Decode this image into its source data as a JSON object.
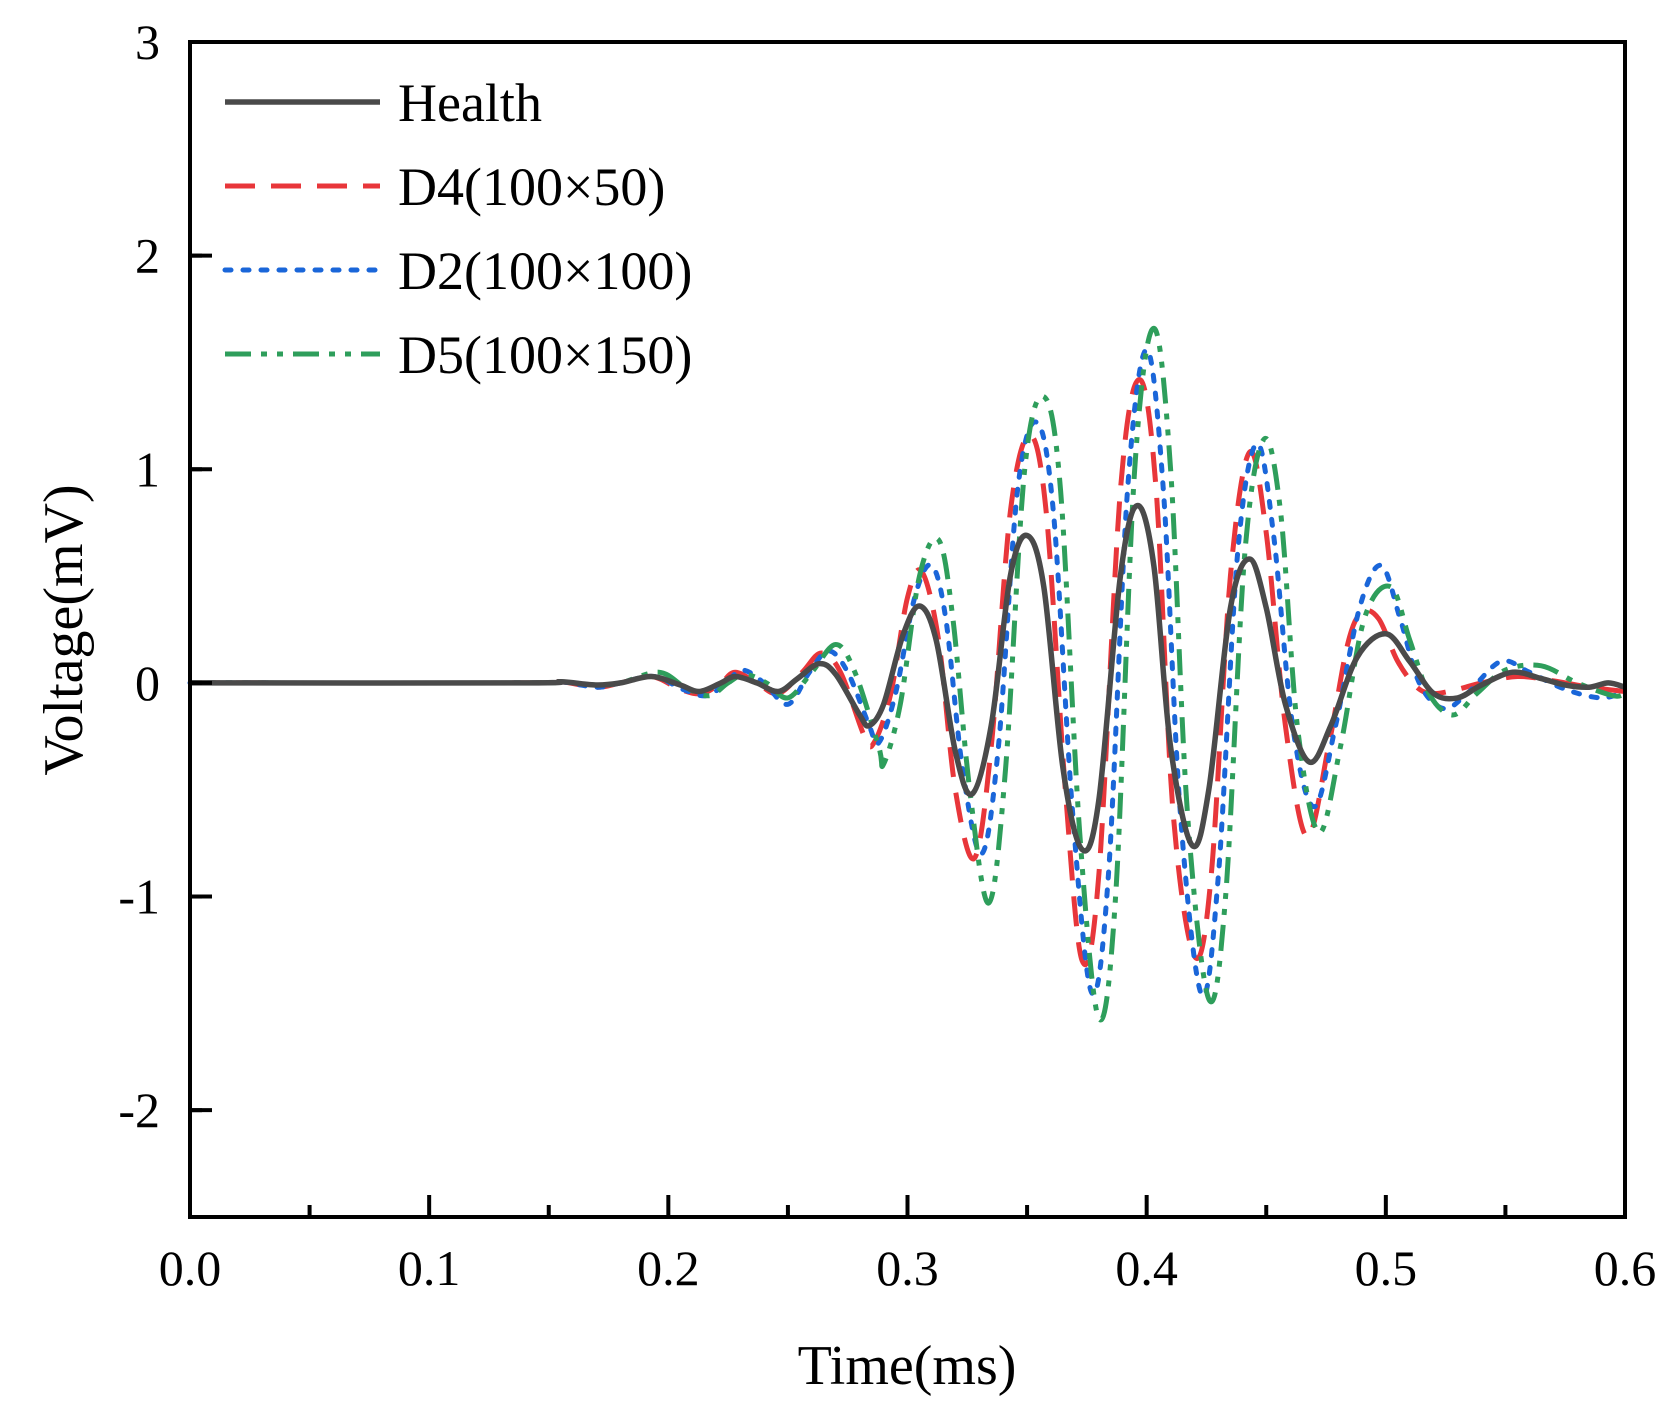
{
  "chart_data": {
    "type": "line",
    "title": "",
    "xlabel": "Time(ms)",
    "ylabel": "Voltage(mV)",
    "xlim": [
      0.0,
      0.6
    ],
    "ylim": [
      -2.5,
      3
    ],
    "x_ticks": [
      "0.0",
      "0.1",
      "0.2",
      "0.3",
      "0.4",
      "0.5",
      "0.6"
    ],
    "y_ticks": [
      "-2",
      "-1",
      "0",
      "1",
      "2",
      "3"
    ],
    "legend_position": "top-left",
    "grid": false,
    "series": [
      {
        "name": "Health",
        "color": "#4a4a4a",
        "dash": "solid",
        "points": [
          [
            0.0,
            0
          ],
          [
            0.14,
            0
          ],
          [
            0.155,
            0.005
          ],
          [
            0.17,
            -0.01
          ],
          [
            0.18,
            0
          ],
          [
            0.193,
            0.03
          ],
          [
            0.205,
            -0.01
          ],
          [
            0.213,
            -0.04
          ],
          [
            0.222,
            0
          ],
          [
            0.228,
            0.03
          ],
          [
            0.237,
            0
          ],
          [
            0.246,
            -0.04
          ],
          [
            0.254,
            0.02
          ],
          [
            0.263,
            0.09
          ],
          [
            0.27,
            0.04
          ],
          [
            0.28,
            -0.15
          ],
          [
            0.284,
            -0.2
          ],
          [
            0.29,
            -0.1
          ],
          [
            0.298,
            0.22
          ],
          [
            0.305,
            0.36
          ],
          [
            0.312,
            0.2
          ],
          [
            0.32,
            -0.32
          ],
          [
            0.327,
            -0.52
          ],
          [
            0.335,
            -0.2
          ],
          [
            0.343,
            0.5
          ],
          [
            0.35,
            0.69
          ],
          [
            0.357,
            0.45
          ],
          [
            0.365,
            -0.4
          ],
          [
            0.373,
            -0.78
          ],
          [
            0.38,
            -0.55
          ],
          [
            0.389,
            0.5
          ],
          [
            0.396,
            0.83
          ],
          [
            0.403,
            0.55
          ],
          [
            0.41,
            -0.3
          ],
          [
            0.419,
            -0.76
          ],
          [
            0.426,
            -0.5
          ],
          [
            0.435,
            0.35
          ],
          [
            0.443,
            0.58
          ],
          [
            0.45,
            0.35
          ],
          [
            0.458,
            -0.1
          ],
          [
            0.468,
            -0.37
          ],
          [
            0.477,
            -0.2
          ],
          [
            0.488,
            0.12
          ],
          [
            0.5,
            0.23
          ],
          [
            0.51,
            0.1
          ],
          [
            0.52,
            -0.05
          ],
          [
            0.53,
            -0.07
          ],
          [
            0.54,
            -0.01
          ],
          [
            0.553,
            0.05
          ],
          [
            0.565,
            0.02
          ],
          [
            0.575,
            -0.01
          ],
          [
            0.585,
            -0.02
          ],
          [
            0.593,
            0.0
          ],
          [
            0.6,
            -0.02
          ]
        ]
      },
      {
        "name": "D4(100×50)",
        "color": "#e8363a",
        "dash": "dashed",
        "points": [
          [
            0.0,
            0
          ],
          [
            0.14,
            0
          ],
          [
            0.155,
            0.005
          ],
          [
            0.17,
            -0.02
          ],
          [
            0.18,
            0
          ],
          [
            0.193,
            0.03
          ],
          [
            0.205,
            -0.03
          ],
          [
            0.214,
            -0.05
          ],
          [
            0.222,
            0
          ],
          [
            0.228,
            0.05
          ],
          [
            0.237,
            0
          ],
          [
            0.246,
            -0.05
          ],
          [
            0.256,
            0.05
          ],
          [
            0.264,
            0.14
          ],
          [
            0.272,
            0.05
          ],
          [
            0.282,
            -0.25
          ],
          [
            0.286,
            -0.28
          ],
          [
            0.293,
            -0.05
          ],
          [
            0.3,
            0.4
          ],
          [
            0.306,
            0.52
          ],
          [
            0.313,
            0.2
          ],
          [
            0.32,
            -0.5
          ],
          [
            0.328,
            -0.82
          ],
          [
            0.335,
            -0.3
          ],
          [
            0.343,
            0.8
          ],
          [
            0.351,
            1.16
          ],
          [
            0.358,
            0.8
          ],
          [
            0.366,
            -0.5
          ],
          [
            0.373,
            -1.3
          ],
          [
            0.38,
            -0.9
          ],
          [
            0.389,
            0.9
          ],
          [
            0.397,
            1.42
          ],
          [
            0.404,
            0.9
          ],
          [
            0.411,
            -0.6
          ],
          [
            0.42,
            -1.28
          ],
          [
            0.427,
            -0.9
          ],
          [
            0.435,
            0.5
          ],
          [
            0.443,
            1.08
          ],
          [
            0.45,
            0.7
          ],
          [
            0.458,
            -0.2
          ],
          [
            0.467,
            -0.72
          ],
          [
            0.476,
            -0.3
          ],
          [
            0.484,
            0.18
          ],
          [
            0.49,
            0.33
          ],
          [
            0.497,
            0.3
          ],
          [
            0.505,
            0.1
          ],
          [
            0.513,
            -0.02
          ],
          [
            0.52,
            -0.05
          ],
          [
            0.53,
            -0.03
          ],
          [
            0.54,
            0.0
          ],
          [
            0.555,
            0.03
          ],
          [
            0.57,
            0.01
          ],
          [
            0.585,
            -0.02
          ],
          [
            0.6,
            -0.04
          ]
        ]
      },
      {
        "name": "D2(100×100)",
        "color": "#1a66d9",
        "dash": "dotted",
        "points": [
          [
            0.0,
            0
          ],
          [
            0.14,
            0
          ],
          [
            0.155,
            0.005
          ],
          [
            0.17,
            -0.02
          ],
          [
            0.18,
            0
          ],
          [
            0.194,
            0.03
          ],
          [
            0.206,
            -0.03
          ],
          [
            0.216,
            -0.06
          ],
          [
            0.224,
            0
          ],
          [
            0.231,
            0.06
          ],
          [
            0.24,
            0
          ],
          [
            0.25,
            -0.1
          ],
          [
            0.259,
            0.05
          ],
          [
            0.267,
            0.15
          ],
          [
            0.275,
            0.05
          ],
          [
            0.284,
            -0.2
          ],
          [
            0.288,
            -0.28
          ],
          [
            0.295,
            -0.05
          ],
          [
            0.303,
            0.4
          ],
          [
            0.31,
            0.55
          ],
          [
            0.316,
            0.3
          ],
          [
            0.323,
            -0.4
          ],
          [
            0.331,
            -0.8
          ],
          [
            0.338,
            -0.3
          ],
          [
            0.346,
            0.9
          ],
          [
            0.354,
            1.22
          ],
          [
            0.361,
            0.8
          ],
          [
            0.369,
            -0.6
          ],
          [
            0.377,
            -1.45
          ],
          [
            0.384,
            -0.9
          ],
          [
            0.392,
            0.9
          ],
          [
            0.4,
            1.56
          ],
          [
            0.407,
            0.9
          ],
          [
            0.414,
            -0.6
          ],
          [
            0.423,
            -1.46
          ],
          [
            0.43,
            -0.9
          ],
          [
            0.438,
            0.6
          ],
          [
            0.446,
            1.12
          ],
          [
            0.453,
            0.7
          ],
          [
            0.461,
            -0.2
          ],
          [
            0.47,
            -0.58
          ],
          [
            0.479,
            -0.2
          ],
          [
            0.489,
            0.35
          ],
          [
            0.498,
            0.55
          ],
          [
            0.506,
            0.3
          ],
          [
            0.514,
            0.0
          ],
          [
            0.524,
            -0.12
          ],
          [
            0.534,
            -0.05
          ],
          [
            0.548,
            0.1
          ],
          [
            0.56,
            0.05
          ],
          [
            0.575,
            -0.03
          ],
          [
            0.59,
            -0.07
          ],
          [
            0.6,
            -0.04
          ]
        ]
      },
      {
        "name": "D5(100×150)",
        "color": "#2e9e5b",
        "dash": "dashdotdot",
        "points": [
          [
            0.0,
            0
          ],
          [
            0.14,
            0
          ],
          [
            0.155,
            0.005
          ],
          [
            0.17,
            -0.01
          ],
          [
            0.18,
            0
          ],
          [
            0.196,
            0.05
          ],
          [
            0.207,
            -0.02
          ],
          [
            0.217,
            -0.06
          ],
          [
            0.225,
            0
          ],
          [
            0.232,
            0.04
          ],
          [
            0.241,
            0
          ],
          [
            0.25,
            -0.07
          ],
          [
            0.26,
            0.05
          ],
          [
            0.27,
            0.18
          ],
          [
            0.278,
            0.05
          ],
          [
            0.288,
            -0.3
          ],
          [
            0.29,
            -0.38
          ],
          [
            0.297,
            -0.1
          ],
          [
            0.305,
            0.5
          ],
          [
            0.313,
            0.67
          ],
          [
            0.319,
            0.3
          ],
          [
            0.326,
            -0.5
          ],
          [
            0.334,
            -1.03
          ],
          [
            0.341,
            -0.4
          ],
          [
            0.349,
            1.0
          ],
          [
            0.357,
            1.34
          ],
          [
            0.364,
            0.9
          ],
          [
            0.372,
            -0.7
          ],
          [
            0.38,
            -1.57
          ],
          [
            0.387,
            -1.0
          ],
          [
            0.395,
            1.0
          ],
          [
            0.403,
            1.66
          ],
          [
            0.41,
            1.0
          ],
          [
            0.417,
            -0.6
          ],
          [
            0.426,
            -1.48
          ],
          [
            0.433,
            -1.0
          ],
          [
            0.441,
            0.6
          ],
          [
            0.449,
            1.14
          ],
          [
            0.456,
            0.8
          ],
          [
            0.463,
            -0.2
          ],
          [
            0.472,
            -0.7
          ],
          [
            0.481,
            -0.3
          ],
          [
            0.491,
            0.3
          ],
          [
            0.502,
            0.45
          ],
          [
            0.51,
            0.2
          ],
          [
            0.518,
            -0.05
          ],
          [
            0.528,
            -0.15
          ],
          [
            0.538,
            -0.05
          ],
          [
            0.55,
            0.06
          ],
          [
            0.565,
            0.08
          ],
          [
            0.58,
            0.0
          ],
          [
            0.595,
            -0.06
          ],
          [
            0.6,
            -0.05
          ]
        ]
      }
    ]
  }
}
